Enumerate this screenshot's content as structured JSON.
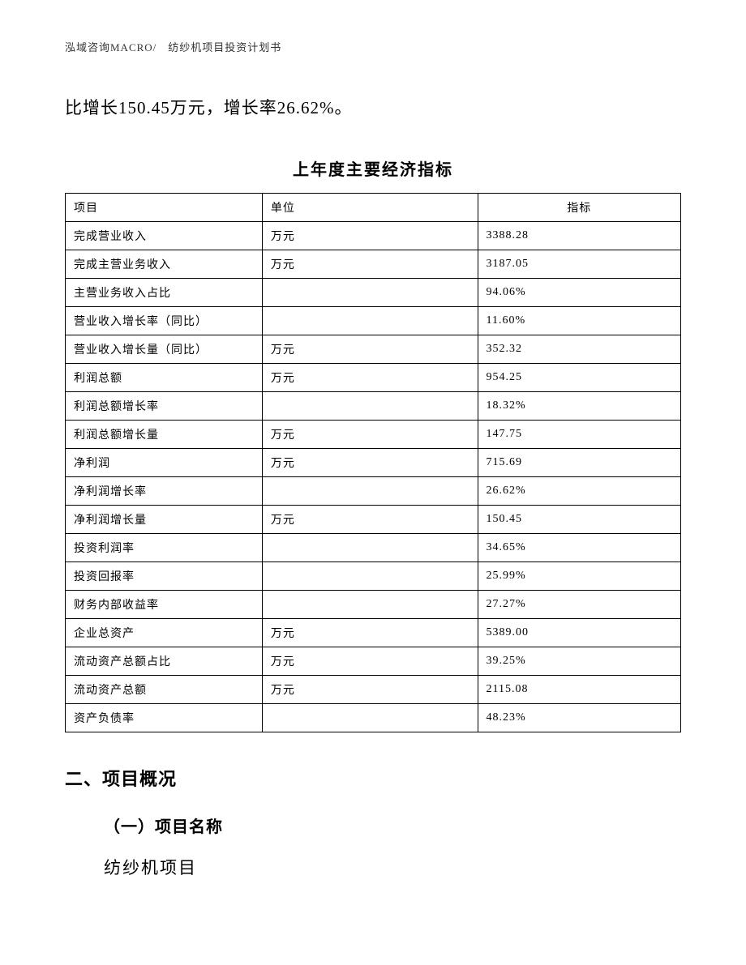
{
  "header": {
    "text": "泓域咨询MACRO/　纺纱机项目投资计划书"
  },
  "paragraph": {
    "text": "比增长150.45万元，增长率26.62%。"
  },
  "table": {
    "title": "上年度主要经济指标",
    "columns": {
      "item": "项目",
      "unit": "单位",
      "value": "指标"
    },
    "rows": [
      {
        "item": "完成营业收入",
        "unit": "万元",
        "value": "3388.28"
      },
      {
        "item": "完成主营业务收入",
        "unit": "万元",
        "value": "3187.05"
      },
      {
        "item": "主营业务收入占比",
        "unit": "",
        "value": "94.06%"
      },
      {
        "item": "营业收入增长率（同比）",
        "unit": "",
        "value": "11.60%"
      },
      {
        "item": "营业收入增长量（同比）",
        "unit": "万元",
        "value": "352.32"
      },
      {
        "item": "利润总额",
        "unit": "万元",
        "value": "954.25"
      },
      {
        "item": "利润总额增长率",
        "unit": "",
        "value": "18.32%"
      },
      {
        "item": "利润总额增长量",
        "unit": "万元",
        "value": "147.75"
      },
      {
        "item": "净利润",
        "unit": "万元",
        "value": "715.69"
      },
      {
        "item": "净利润增长率",
        "unit": "",
        "value": "26.62%"
      },
      {
        "item": "净利润增长量",
        "unit": "万元",
        "value": "150.45"
      },
      {
        "item": "投资利润率",
        "unit": "",
        "value": "34.65%"
      },
      {
        "item": "投资回报率",
        "unit": "",
        "value": "25.99%"
      },
      {
        "item": "财务内部收益率",
        "unit": "",
        "value": "27.27%"
      },
      {
        "item": "企业总资产",
        "unit": "万元",
        "value": "5389.00"
      },
      {
        "item": "流动资产总额占比",
        "unit": "万元",
        "value": "39.25%"
      },
      {
        "item": "流动资产总额",
        "unit": "万元",
        "value": "2115.08"
      },
      {
        "item": "资产负债率",
        "unit": "",
        "value": "48.23%"
      }
    ]
  },
  "section": {
    "heading": "二、项目概况",
    "subheading": "（一）项目名称",
    "project_name": "纺纱机项目"
  },
  "style": {
    "background_color": "#ffffff",
    "text_color": "#000000",
    "border_color": "#000000",
    "header_fontsize": 13,
    "body_fontsize": 21,
    "table_title_fontsize": 20,
    "cell_fontsize": 14,
    "section_fontsize": 22,
    "subsection_fontsize": 20
  }
}
